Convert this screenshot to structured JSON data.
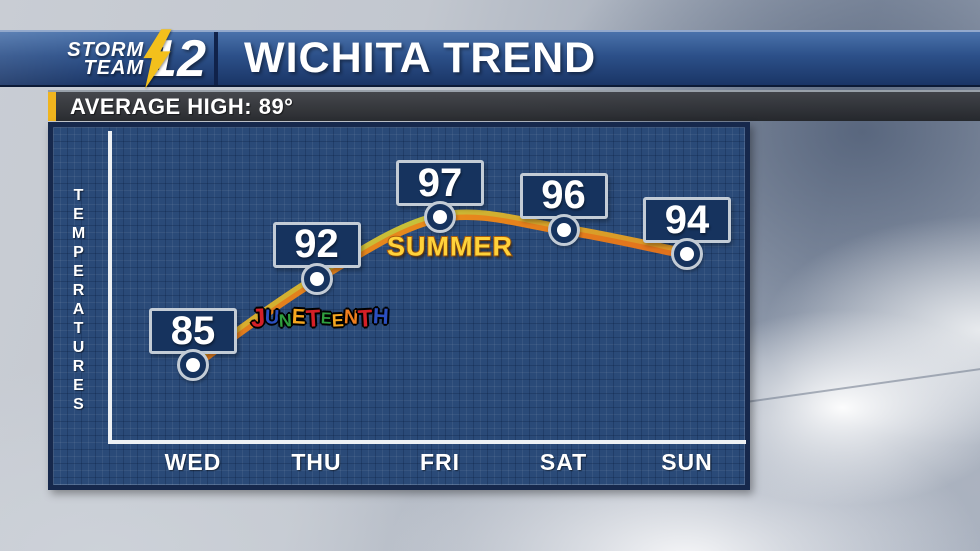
{
  "header": {
    "logo": {
      "line1": "STORM",
      "line2": "TEAM",
      "number": "12",
      "bolt_color": "#f3c01c"
    },
    "title": "WICHITA TREND"
  },
  "subheader": {
    "label": "AVERAGE HIGH: 89°",
    "accent_color": "#f0b41e"
  },
  "chart_data": {
    "type": "line",
    "title": "WICHITA TREND",
    "categories": [
      "WED",
      "THU",
      "FRI",
      "SAT",
      "SUN"
    ],
    "values": [
      85,
      92,
      97,
      96,
      94
    ],
    "ylabel": "TEMPERATURES",
    "xlabel": "",
    "average_high": 89,
    "grid": true,
    "legend": "none",
    "marker_style": "white-dot-in-navy-ring",
    "line_gradient_top": [
      "#dca62b",
      "#c6c13a",
      "#d8a32a",
      "#dc9426"
    ],
    "line_gradient_bottom": [
      "#e07a1e",
      "#e88a1c",
      "#e0701d"
    ],
    "annotations": [
      {
        "text": "JUNETEENTH",
        "attached_to": "THU",
        "style": "multicolor-outlined",
        "letter_colors": [
          "#d42027",
          "#2b4fc0",
          "#2f9e3f",
          "#f5a61f",
          "#d42027",
          "#2f9e3f",
          "#f5a61f",
          "#ef7f1e",
          "#d42027",
          "#2b4fc0"
        ],
        "letter_sizes": [
          26,
          20,
          18,
          21,
          24,
          16,
          18,
          20,
          24,
          22
        ]
      },
      {
        "text": "SUMMER",
        "attached_to": "FRI",
        "style": "gold-bubble"
      }
    ]
  }
}
